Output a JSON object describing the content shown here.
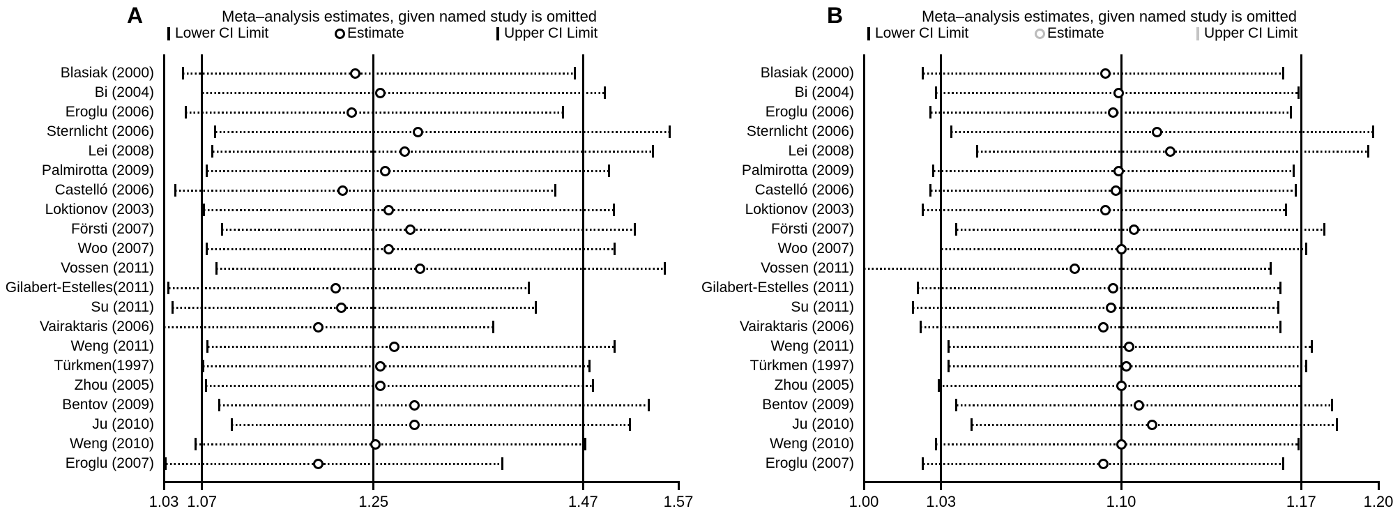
{
  "figure": {
    "panels": [
      {
        "letter": "A",
        "title": "Meta–analysis estimates, given named study is omitted",
        "legend": {
          "lower_label": "Lower CI Limit",
          "estimate_label": "Estimate",
          "upper_label": "Upper CI Limit",
          "marker_colors": {
            "lower": "#000000",
            "estimate": "#000000",
            "upper": "#000000"
          }
        }
      },
      {
        "letter": "B",
        "title": "Meta–analysis estimates, given named study is omitted",
        "legend": {
          "lower_label": "Lower CI Limit",
          "estimate_label": "Estimate",
          "upper_label": "Upper CI Limit",
          "marker_colors": {
            "lower": "#000000",
            "estimate": "#bcbcbc",
            "upper": "#c4c4c4"
          }
        }
      }
    ]
  },
  "chart_data": [
    {
      "type": "forest-sensitivity",
      "panel": "A",
      "title": "Meta–analysis estimates, given named study is omitted",
      "xlim": [
        1.03,
        1.57
      ],
      "x_tick_values": [
        1.03,
        1.07,
        1.25,
        1.47,
        1.57
      ],
      "x_tick_labels": [
        "1.03",
        "1.07",
        "1.25",
        "1.47",
        "1.57"
      ],
      "gridlines": [
        1.07,
        1.25,
        1.47
      ],
      "overall": {
        "lower": 1.07,
        "estimate": 1.25,
        "upper": 1.47
      },
      "grid": true,
      "legend_position": "top",
      "studies": [
        {
          "label": "Blasiak (2000)",
          "lower": 1.05,
          "estimate": 1.231,
          "upper": 1.461
        },
        {
          "label": "Bi (2004)",
          "lower": 1.07,
          "estimate": 1.257,
          "upper": 1.493
        },
        {
          "label": "Eroglu (2006)",
          "lower": 1.053,
          "estimate": 1.227,
          "upper": 1.449
        },
        {
          "label": "Sternlicht (2006)",
          "lower": 1.084,
          "estimate": 1.297,
          "upper": 1.561
        },
        {
          "label": "Lei (2008)",
          "lower": 1.081,
          "estimate": 1.283,
          "upper": 1.543
        },
        {
          "label": "Palmirotta (2009)",
          "lower": 1.075,
          "estimate": 1.262,
          "upper": 1.497
        },
        {
          "label": "Castelló (2006)",
          "lower": 1.042,
          "estimate": 1.218,
          "upper": 1.441
        },
        {
          "label": "Loktionov (2003)",
          "lower": 1.072,
          "estimate": 1.266,
          "upper": 1.502
        },
        {
          "label": "Försti (2007)",
          "lower": 1.091,
          "estimate": 1.289,
          "upper": 1.524
        },
        {
          "label": "Woo (2007)",
          "lower": 1.075,
          "estimate": 1.266,
          "upper": 1.503
        },
        {
          "label": "Vossen (2011)",
          "lower": 1.085,
          "estimate": 1.299,
          "upper": 1.556
        },
        {
          "label": "Gilabert-Estelles(2011)",
          "lower": 1.035,
          "estimate": 1.21,
          "upper": 1.413
        },
        {
          "label": "Su (2011)",
          "lower": 1.039,
          "estimate": 1.216,
          "upper": 1.42
        },
        {
          "label": "Vairaktaris (2006)",
          "lower": 1.03,
          "estimate": 1.192,
          "upper": 1.376,
          "lower_tick": false
        },
        {
          "label": "Weng (2011)",
          "lower": 1.076,
          "estimate": 1.272,
          "upper": 1.503
        },
        {
          "label": "Türkmen(1997)",
          "lower": 1.071,
          "estimate": 1.257,
          "upper": 1.477
        },
        {
          "label": "Zhou (2005)",
          "lower": 1.074,
          "estimate": 1.257,
          "upper": 1.48
        },
        {
          "label": "Bentov (2009)",
          "lower": 1.088,
          "estimate": 1.293,
          "upper": 1.539
        },
        {
          "label": "Ju (2010)",
          "lower": 1.101,
          "estimate": 1.293,
          "upper": 1.519
        },
        {
          "label": "Weng (2010)",
          "lower": 1.063,
          "estimate": 1.252,
          "upper": 1.472
        },
        {
          "label": "Eroglu (2007)",
          "lower": 1.032,
          "estimate": 1.192,
          "upper": 1.385
        }
      ]
    },
    {
      "type": "forest-sensitivity",
      "panel": "B",
      "title": "Meta–analysis estimates, given named study is omitted",
      "xlim": [
        1.0,
        1.2
      ],
      "x_tick_values": [
        1.0,
        1.03,
        1.1,
        1.17,
        1.2
      ],
      "x_tick_labels": [
        "1.00",
        "1.03",
        "1.10",
        "1.17",
        "1.20"
      ],
      "gridlines": [
        1.03,
        1.1,
        1.17
      ],
      "overall": {
        "lower": 1.03,
        "estimate": 1.1,
        "upper": 1.17
      },
      "grid": true,
      "legend_position": "top",
      "studies": [
        {
          "label": "Blasiak (2000)",
          "lower": 1.023,
          "estimate": 1.094,
          "upper": 1.163
        },
        {
          "label": "Bi (2004)",
          "lower": 1.028,
          "estimate": 1.099,
          "upper": 1.169
        },
        {
          "label": "Eroglu (2006)",
          "lower": 1.026,
          "estimate": 1.097,
          "upper": 1.166
        },
        {
          "label": "Sternlicht (2006)",
          "lower": 1.034,
          "estimate": 1.114,
          "upper": 1.198
        },
        {
          "label": "Lei (2008)",
          "lower": 1.044,
          "estimate": 1.119,
          "upper": 1.196
        },
        {
          "label": "Palmirotta (2009)",
          "lower": 1.027,
          "estimate": 1.099,
          "upper": 1.167
        },
        {
          "label": "Castelló (2006)",
          "lower": 1.026,
          "estimate": 1.098,
          "upper": 1.168
        },
        {
          "label": "Loktionov (2003)",
          "lower": 1.023,
          "estimate": 1.094,
          "upper": 1.164
        },
        {
          "label": "Försti (2007)",
          "lower": 1.036,
          "estimate": 1.105,
          "upper": 1.179
        },
        {
          "label": "Woo (2007)",
          "lower": 1.03,
          "estimate": 1.1,
          "upper": 1.172
        },
        {
          "label": "Vossen (2011)",
          "lower": 1.0,
          "estimate": 1.082,
          "upper": 1.158,
          "lower_tick": false
        },
        {
          "label": "Gilabert-Estelles (2011)",
          "lower": 1.021,
          "estimate": 1.097,
          "upper": 1.162
        },
        {
          "label": "Su (2011)",
          "lower": 1.019,
          "estimate": 1.096,
          "upper": 1.161
        },
        {
          "label": "Vairaktaris (2006)",
          "lower": 1.022,
          "estimate": 1.093,
          "upper": 1.162
        },
        {
          "label": "Weng (2011)",
          "lower": 1.033,
          "estimate": 1.103,
          "upper": 1.174
        },
        {
          "label": "Türkmen (1997)",
          "lower": 1.033,
          "estimate": 1.102,
          "upper": 1.172
        },
        {
          "label": "Zhou (2005)",
          "lower": 1.029,
          "estimate": 1.1,
          "upper": 1.17
        },
        {
          "label": "Bentov (2009)",
          "lower": 1.036,
          "estimate": 1.107,
          "upper": 1.182
        },
        {
          "label": "Ju (2010)",
          "lower": 1.042,
          "estimate": 1.112,
          "upper": 1.184
        },
        {
          "label": "Weng (2010)",
          "lower": 1.028,
          "estimate": 1.1,
          "upper": 1.169
        },
        {
          "label": "Eroglu (2007)",
          "lower": 1.023,
          "estimate": 1.093,
          "upper": 1.163
        }
      ]
    }
  ]
}
